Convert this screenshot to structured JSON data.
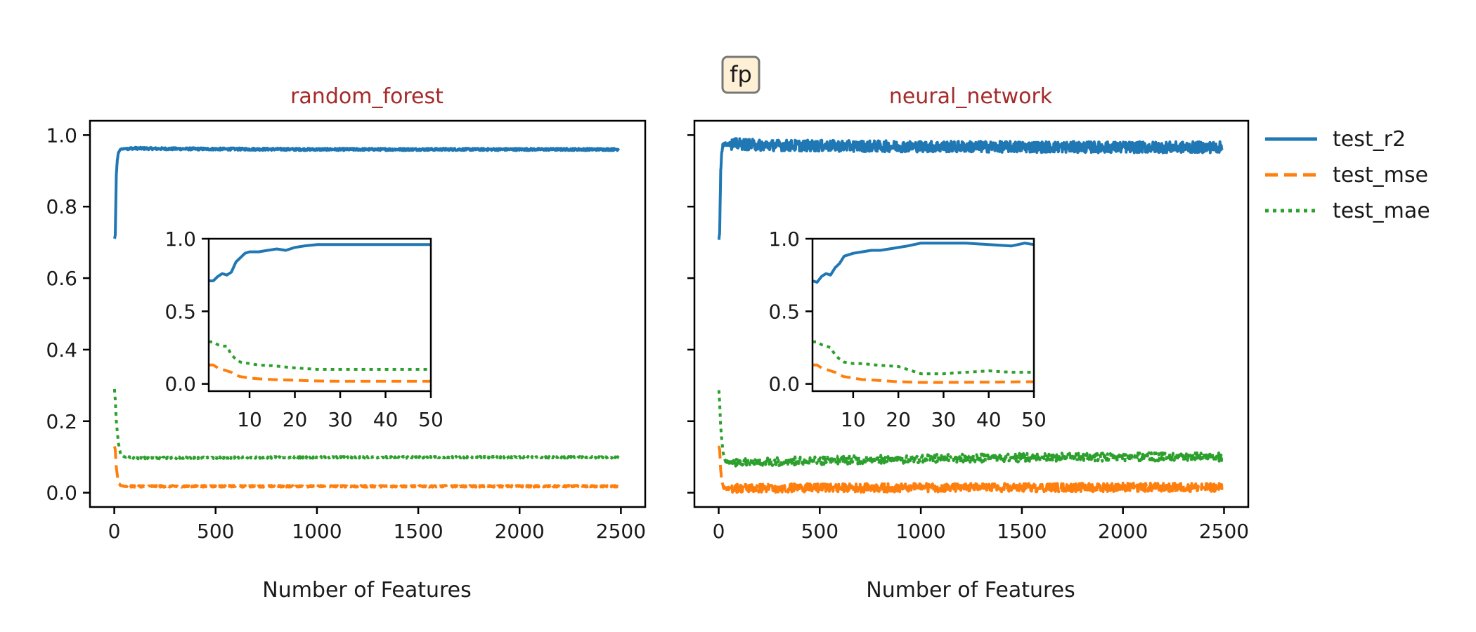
{
  "figure": {
    "badge": "fp",
    "colors": {
      "test_r2": "#1f77b4",
      "test_mse": "#ff7f0e",
      "test_mae": "#2ca02c",
      "title": "#a52a2a",
      "badge_bg": "#fdf0d5",
      "badge_border": "#777777"
    }
  },
  "legend": {
    "placement": "right-top",
    "items": [
      {
        "key": "test_r2",
        "label": "test_r2",
        "style": "solid"
      },
      {
        "key": "test_mse",
        "label": "test_mse",
        "style": "dashed"
      },
      {
        "key": "test_mae",
        "label": "test_mae",
        "style": "dotted"
      }
    ]
  },
  "chart_data": [
    {
      "type": "line",
      "title": "random_forest",
      "xlabel": "Number of Features",
      "ylabel": "",
      "xlim": [
        -120,
        2620
      ],
      "ylim": [
        -0.04,
        1.04
      ],
      "xticks": [
        "0",
        "500",
        "1000",
        "1500",
        "2000",
        "2500"
      ],
      "yticks": [
        "0.0",
        "0.2",
        "0.4",
        "0.6",
        "0.8",
        "1.0"
      ],
      "noise": 0.0025,
      "series": [
        {
          "name": "test_r2",
          "x": [
            1,
            5,
            10,
            15,
            20,
            30,
            50,
            100,
            200,
            500,
            1000,
            1500,
            2000,
            2490
          ],
          "y": [
            0.71,
            0.72,
            0.89,
            0.93,
            0.95,
            0.96,
            0.962,
            0.963,
            0.962,
            0.961,
            0.96,
            0.96,
            0.96,
            0.96
          ]
        },
        {
          "name": "test_mse",
          "x": [
            1,
            5,
            10,
            20,
            30,
            50,
            100,
            500,
            1000,
            1500,
            2000,
            2490
          ],
          "y": [
            0.13,
            0.12,
            0.07,
            0.03,
            0.02,
            0.018,
            0.018,
            0.018,
            0.018,
            0.018,
            0.018,
            0.018
          ]
        },
        {
          "name": "test_mae",
          "x": [
            1,
            3,
            5,
            10,
            20,
            30,
            50,
            100,
            500,
            1000,
            1500,
            2000,
            2490
          ],
          "y": [
            0.29,
            0.27,
            0.26,
            0.2,
            0.14,
            0.11,
            0.1,
            0.097,
            0.098,
            0.099,
            0.099,
            0.099,
            0.099
          ]
        }
      ],
      "inset": {
        "xlim": [
          1,
          50
        ],
        "ylim": [
          -0.05,
          1.0
        ],
        "xticks": [
          "10",
          "20",
          "30",
          "40",
          "50"
        ],
        "yticks": [
          "0.0",
          "0.5",
          "1.0"
        ],
        "series": [
          {
            "name": "test_r2",
            "x": [
              1,
              2,
              3,
              4,
              5,
              6,
              7,
              8,
              9,
              10,
              12,
              14,
              16,
              18,
              20,
              22,
              25,
              30,
              35,
              40,
              45,
              50
            ],
            "y": [
              0.71,
              0.71,
              0.74,
              0.76,
              0.75,
              0.77,
              0.84,
              0.87,
              0.9,
              0.91,
              0.91,
              0.92,
              0.93,
              0.92,
              0.94,
              0.95,
              0.96,
              0.96,
              0.96,
              0.96,
              0.96,
              0.96
            ]
          },
          {
            "name": "test_mse",
            "x": [
              1,
              2,
              3,
              4,
              5,
              6,
              7,
              8,
              10,
              12,
              15,
              20,
              25,
              30,
              40,
              50
            ],
            "y": [
              0.13,
              0.13,
              0.11,
              0.1,
              0.09,
              0.08,
              0.06,
              0.05,
              0.04,
              0.035,
              0.03,
              0.025,
              0.02,
              0.018,
              0.018,
              0.018
            ]
          },
          {
            "name": "test_mae",
            "x": [
              1,
              2,
              3,
              4,
              5,
              6,
              7,
              8,
              10,
              12,
              15,
              20,
              25,
              30,
              40,
              50
            ],
            "y": [
              0.29,
              0.29,
              0.27,
              0.26,
              0.26,
              0.2,
              0.17,
              0.15,
              0.14,
              0.13,
              0.125,
              0.11,
              0.1,
              0.1,
              0.1,
              0.1
            ]
          }
        ]
      }
    },
    {
      "type": "line",
      "title": "neural_network",
      "xlabel": "Number of Features",
      "ylabel": "",
      "xlim": [
        -120,
        2620
      ],
      "ylim": [
        -0.04,
        1.04
      ],
      "xticks": [
        "0",
        "500",
        "1000",
        "1500",
        "2000",
        "2500"
      ],
      "yticks": [
        "0.0",
        "0.2",
        "0.4",
        "0.6",
        "0.8",
        "1.0"
      ],
      "noise": 0.012,
      "series": [
        {
          "name": "test_r2",
          "x": [
            1,
            5,
            10,
            15,
            20,
            30,
            50,
            100,
            200,
            500,
            1000,
            1500,
            2000,
            2490
          ],
          "y": [
            0.71,
            0.73,
            0.9,
            0.95,
            0.97,
            0.975,
            0.975,
            0.975,
            0.972,
            0.97,
            0.968,
            0.967,
            0.966,
            0.966
          ]
        },
        {
          "name": "test_mse",
          "x": [
            1,
            5,
            10,
            20,
            30,
            50,
            100,
            500,
            1000,
            1500,
            2000,
            2490
          ],
          "y": [
            0.13,
            0.12,
            0.06,
            0.02,
            0.012,
            0.012,
            0.013,
            0.013,
            0.014,
            0.014,
            0.015,
            0.015
          ]
        },
        {
          "name": "test_mae",
          "x": [
            1,
            3,
            5,
            10,
            20,
            30,
            50,
            100,
            500,
            1000,
            1500,
            2000,
            2490
          ],
          "y": [
            0.29,
            0.27,
            0.25,
            0.18,
            0.12,
            0.09,
            0.085,
            0.085,
            0.09,
            0.095,
            0.098,
            0.1,
            0.1
          ]
        }
      ],
      "inset": {
        "xlim": [
          1,
          50
        ],
        "ylim": [
          -0.05,
          1.0
        ],
        "xticks": [
          "10",
          "20",
          "30",
          "40",
          "50"
        ],
        "yticks": [
          "0.0",
          "0.5",
          "1.0"
        ],
        "series": [
          {
            "name": "test_r2",
            "x": [
              1,
              2,
              3,
              4,
              5,
              6,
              7,
              8,
              10,
              12,
              14,
              16,
              18,
              20,
              22,
              25,
              30,
              35,
              40,
              45,
              48,
              50
            ],
            "y": [
              0.71,
              0.7,
              0.74,
              0.76,
              0.75,
              0.8,
              0.83,
              0.88,
              0.9,
              0.91,
              0.92,
              0.92,
              0.93,
              0.94,
              0.95,
              0.97,
              0.97,
              0.97,
              0.96,
              0.95,
              0.97,
              0.96
            ]
          },
          {
            "name": "test_mse",
            "x": [
              1,
              2,
              3,
              4,
              5,
              6,
              7,
              8,
              10,
              12,
              15,
              20,
              25,
              30,
              40,
              50
            ],
            "y": [
              0.13,
              0.13,
              0.11,
              0.1,
              0.09,
              0.08,
              0.06,
              0.05,
              0.04,
              0.03,
              0.025,
              0.015,
              0.01,
              0.01,
              0.012,
              0.015
            ]
          },
          {
            "name": "test_mae",
            "x": [
              1,
              2,
              3,
              4,
              5,
              6,
              7,
              8,
              10,
              12,
              15,
              20,
              25,
              30,
              35,
              40,
              45,
              50
            ],
            "y": [
              0.29,
              0.29,
              0.27,
              0.26,
              0.25,
              0.2,
              0.17,
              0.15,
              0.14,
              0.14,
              0.13,
              0.12,
              0.07,
              0.07,
              0.08,
              0.09,
              0.08,
              0.08
            ]
          }
        ]
      }
    }
  ]
}
